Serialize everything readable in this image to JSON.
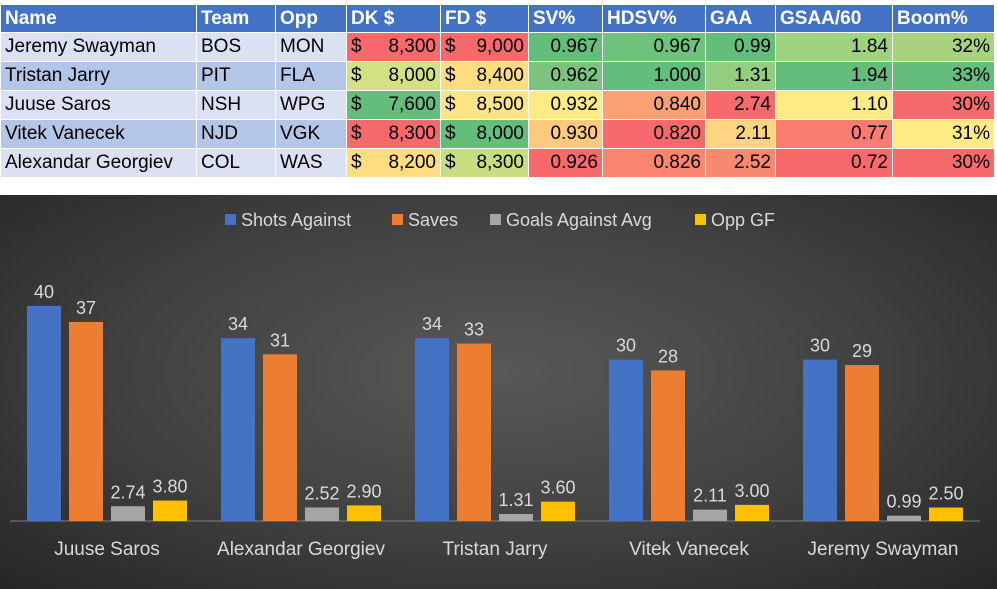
{
  "table": {
    "headers": [
      "Name",
      "Team",
      "Opp",
      "DK $",
      "FD $",
      "SV%",
      "HDSV%",
      "GAA",
      "GSAA/60",
      "Boom%"
    ],
    "rows": [
      {
        "name": "Jeremy Swayman",
        "team": "BOS",
        "opp": "MON",
        "dk": "8,300",
        "fd": "9,000",
        "sv": "0.967",
        "hdsv": "0.967",
        "gaa": "0.99",
        "gsaa": "1.84",
        "boom": "32%",
        "colors": {
          "dk": "#f8696b",
          "fd": "#f8696b",
          "sv": "#63be7b",
          "hdsv": "#6ec27c",
          "gaa": "#63be7b",
          "gsaa": "#9ed27f",
          "boom": "#a9d27f"
        }
      },
      {
        "name": "Tristan Jarry",
        "team": "PIT",
        "opp": "FLA",
        "dk": "8,000",
        "fd": "8,400",
        "sv": "0.962",
        "hdsv": "1.000",
        "gaa": "1.31",
        "gsaa": "1.94",
        "boom": "33%",
        "colors": {
          "dk": "#d3e183",
          "fd": "#fedd81",
          "sv": "#7bc47d",
          "hdsv": "#63be7b",
          "gaa": "#93cd7e",
          "gsaa": "#63be7b",
          "boom": "#63be7b"
        }
      },
      {
        "name": "Juuse Saros",
        "team": "NSH",
        "opp": "WPG",
        "dk": "7,600",
        "fd": "8,500",
        "sv": "0.932",
        "hdsv": "0.840",
        "gaa": "2.74",
        "gsaa": "1.10",
        "boom": "30%",
        "colors": {
          "dk": "#63be7b",
          "fd": "#fee583",
          "sv": "#ffeb84",
          "hdsv": "#f9a075",
          "gaa": "#f8696b",
          "gsaa": "#ffeb84",
          "boom": "#f8696b"
        }
      },
      {
        "name": "Vitek Vanecek",
        "team": "NJD",
        "opp": "VGK",
        "dk": "8,300",
        "fd": "8,000",
        "sv": "0.930",
        "hdsv": "0.820",
        "gaa": "2.11",
        "gsaa": "0.77",
        "boom": "31%",
        "colors": {
          "dk": "#f8696b",
          "fd": "#63be7b",
          "sv": "#fdc97d",
          "hdsv": "#f8696b",
          "gaa": "#fed480",
          "gsaa": "#f97d6e",
          "boom": "#ffeb84"
        }
      },
      {
        "name": "Alexandar Georgiev",
        "team": "COL",
        "opp": "WAS",
        "dk": "8,200",
        "fd": "8,300",
        "sv": "0.926",
        "hdsv": "0.826",
        "gaa": "2.52",
        "gsaa": "0.72",
        "boom": "30%",
        "colors": {
          "dk": "#fedd81",
          "fd": "#c6dd80",
          "sv": "#f8696b",
          "hdsv": "#f98570",
          "gaa": "#f98870",
          "gsaa": "#f8696b",
          "boom": "#f8696b"
        }
      }
    ],
    "currency_symbol": "$"
  },
  "chart_data": {
    "type": "bar",
    "categories": [
      "Juuse Saros",
      "Alexandar Georgiev",
      "Tristan Jarry",
      "Vitek Vanecek",
      "Jeremy Swayman"
    ],
    "series": [
      {
        "name": "Shots Against",
        "color": "#4472c4",
        "values": [
          40,
          34,
          34,
          30,
          30
        ],
        "labels": [
          "40",
          "34",
          "34",
          "30",
          "30"
        ]
      },
      {
        "name": "Saves",
        "color": "#ed7d31",
        "values": [
          37,
          31,
          33,
          28,
          29
        ],
        "labels": [
          "37",
          "31",
          "33",
          "28",
          "29"
        ]
      },
      {
        "name": "Goals Against Avg",
        "color": "#a5a5a5",
        "values": [
          2.74,
          2.52,
          1.31,
          2.11,
          0.99
        ],
        "labels": [
          "2.74",
          "2.52",
          "1.31",
          "2.11",
          "0.99"
        ]
      },
      {
        "name": "Opp GF",
        "color": "#ffc000",
        "values": [
          3.8,
          2.9,
          3.6,
          3.0,
          2.5
        ],
        "labels": [
          "3.80",
          "2.90",
          "3.60",
          "3.00",
          "2.50"
        ]
      }
    ],
    "ylim": [
      0,
      45
    ],
    "legend": "top",
    "grid": false
  }
}
